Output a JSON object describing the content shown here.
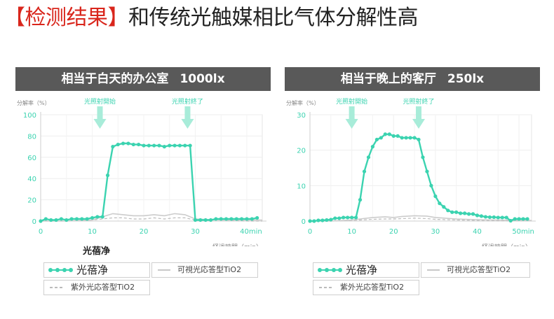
{
  "headline": {
    "bracketed": "【检测结果】",
    "rest": "和传统光触媒相比气体分解性高"
  },
  "colors": {
    "accent": "#3bd3b0",
    "title_red": "#d9261c",
    "banner_bg": "#595959",
    "arrow": "#a8ecd9",
    "visible_series": "#cccccc",
    "uv_series": "#bbbbbb"
  },
  "legend": {
    "product": "光蓓净",
    "visible_tio2": "可視光応答型TiO2",
    "uv_tio2": "紫外光応答型TiO2"
  },
  "chart_data": [
    {
      "type": "line",
      "panel_title": "相当于白天的办公室",
      "lux": "1000lx",
      "ylabel": "分解率（%）",
      "xlabel": "経過時間（min）",
      "product_label": "光蓓净",
      "xlim": [
        0,
        43
      ],
      "ylim": [
        0,
        100
      ],
      "xticks": [
        0,
        10,
        20,
        30,
        40
      ],
      "xtick_labels": [
        "0",
        "10",
        "20",
        "30",
        "40min"
      ],
      "yticks": [
        0,
        20,
        40,
        60,
        80,
        100
      ],
      "annotations": [
        {
          "text": "光照射開始",
          "x": 11.5
        },
        {
          "text": "光照射終了",
          "x": 28.5
        }
      ],
      "grid": true,
      "series": [
        {
          "name": "光蓓净",
          "x": [
            0,
            1,
            2,
            3,
            4,
            5,
            6,
            7,
            8,
            9,
            10,
            11,
            12,
            13,
            14,
            15,
            16,
            17,
            18,
            19,
            20,
            21,
            22,
            23,
            24,
            25,
            26,
            27,
            28,
            29,
            30,
            31,
            32,
            33,
            34,
            35,
            36,
            37,
            38,
            39,
            40,
            41,
            42
          ],
          "values": [
            0,
            2,
            1,
            1,
            2,
            1,
            2,
            2,
            2,
            2,
            3,
            4,
            4,
            43,
            70,
            72,
            73,
            73,
            72,
            72,
            71,
            71,
            71,
            71,
            70,
            71,
            71,
            71,
            71,
            71,
            1,
            1,
            1,
            1,
            2,
            2,
            2,
            2,
            2,
            2,
            2,
            2,
            3
          ]
        },
        {
          "name": "可視光応答型TiO2",
          "x": [
            0,
            5,
            10,
            12,
            14,
            16,
            18,
            20,
            22,
            24,
            26,
            28,
            30,
            35,
            40,
            43
          ],
          "values": [
            0,
            0,
            1,
            4,
            7,
            6,
            5,
            5,
            6,
            5,
            7,
            6,
            2,
            1,
            1,
            1
          ]
        },
        {
          "name": "紫外光応答型TiO2",
          "x": [
            0,
            5,
            10,
            12,
            14,
            16,
            18,
            20,
            22,
            24,
            26,
            28,
            30,
            35,
            40,
            43
          ],
          "values": [
            0,
            0,
            1,
            2,
            3,
            3,
            2,
            2,
            3,
            2,
            3,
            3,
            1,
            1,
            0,
            0
          ]
        }
      ]
    },
    {
      "type": "line",
      "panel_title": "相当于晚上的客厅",
      "lux": "250lx",
      "ylabel": "分解率（%）",
      "xlabel": "経過時間（min）",
      "xlim": [
        0,
        53
      ],
      "ylim": [
        0,
        30
      ],
      "xticks": [
        0,
        10,
        20,
        30,
        40,
        50
      ],
      "xtick_labels": [
        "0",
        "10",
        "20",
        "30",
        "40",
        "50min"
      ],
      "yticks": [
        0,
        10,
        20,
        30
      ],
      "annotations": [
        {
          "text": "光照射開始",
          "x": 10
        },
        {
          "text": "光照射終了",
          "x": 26
        }
      ],
      "grid": true,
      "series": [
        {
          "name": "光蓓净",
          "x": [
            0,
            1,
            2,
            3,
            4,
            5,
            6,
            7,
            8,
            9,
            10,
            11,
            12,
            13,
            14,
            15,
            16,
            17,
            18,
            19,
            20,
            21,
            22,
            23,
            24,
            25,
            26,
            27,
            28,
            29,
            30,
            31,
            32,
            33,
            34,
            35,
            36,
            37,
            38,
            39,
            40,
            41,
            42,
            43,
            44,
            45,
            46,
            47,
            48,
            49,
            50,
            51,
            52
          ],
          "values": [
            0,
            0,
            0.2,
            0.2,
            0.3,
            0.4,
            0.8,
            0.8,
            1.0,
            1.0,
            1.0,
            1.0,
            6,
            14,
            18,
            21,
            23,
            23.5,
            24.5,
            24.5,
            24,
            24,
            23.5,
            23.5,
            23.5,
            23.5,
            23,
            18,
            14,
            10,
            7,
            5,
            4,
            3,
            2.5,
            2.5,
            2.2,
            2.2,
            2,
            2,
            1.6,
            1.4,
            1.2,
            1.1,
            1.1,
            1.0,
            1.0,
            1.0,
            0.1,
            0.6,
            0.6,
            0.6,
            0.6
          ]
        },
        {
          "name": "可視光応答型TiO2",
          "x": [
            0,
            5,
            10,
            12,
            15,
            18,
            20,
            22,
            25,
            28,
            30,
            35,
            40,
            45,
            50,
            53
          ],
          "values": [
            0,
            0,
            0.3,
            0.6,
            1.0,
            1.2,
            1.0,
            1.3,
            1.5,
            1.4,
            1.0,
            0.6,
            0.4,
            0.3,
            0.2,
            0.2
          ]
        },
        {
          "name": "紫外光応答型TiO2",
          "x": [
            0,
            5,
            10,
            12,
            15,
            18,
            20,
            22,
            25,
            28,
            30,
            35,
            40,
            45,
            50,
            53
          ],
          "values": [
            0,
            0,
            0.2,
            0.3,
            0.5,
            0.6,
            0.6,
            0.7,
            0.8,
            0.7,
            0.5,
            0.3,
            0.2,
            0.1,
            0.1,
            0.1
          ]
        }
      ]
    }
  ]
}
